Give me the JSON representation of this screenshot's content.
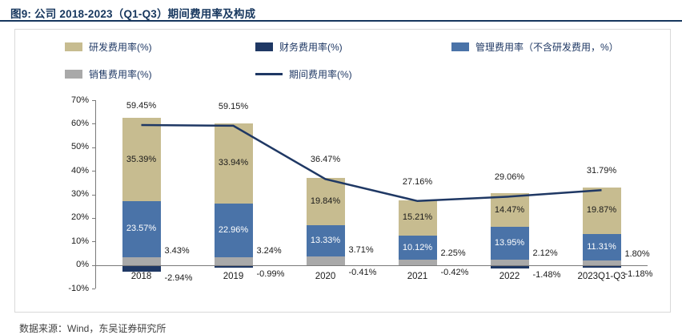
{
  "title": "图9:  公司 2018-2023（Q1-Q3）期间费用率及构成",
  "source_note": "数据来源：Wind，东吴证券研究所",
  "colors": {
    "rd": "#C7BC90",
    "management": "#4A73A8",
    "finance": "#1F3864",
    "sales": "#A9A9A9",
    "line": "#1F3864",
    "title": "#17375E",
    "axis": "#7a7a7a",
    "box_border": "#D9D9D9"
  },
  "legend": [
    {
      "key": "rd",
      "label": "研发费用率(%)",
      "type": "box",
      "row": 0,
      "col": 0
    },
    {
      "key": "finance",
      "label": "财务费用率(%)",
      "type": "box",
      "row": 0,
      "col": 1
    },
    {
      "key": "management",
      "label": "管理费用率（不含研发费用，%）",
      "type": "box",
      "row": 0,
      "col": 2
    },
    {
      "key": "sales",
      "label": "销售费用率(%)",
      "type": "box",
      "row": 1,
      "col": 0
    },
    {
      "key": "line",
      "label": "期间费用率(%)",
      "type": "line",
      "row": 1,
      "col": 1
    }
  ],
  "chart_data": {
    "type": "bar",
    "subtype": "stacked-bar-with-line",
    "title": "公司 2018-2023（Q1-Q3）期间费用率及构成",
    "categories": [
      "2018",
      "2019",
      "2020",
      "2021",
      "2022",
      "2023Q1-Q3"
    ],
    "series": [
      {
        "key": "sales",
        "name": "销售费用率(%)",
        "values": [
          3.43,
          3.24,
          3.71,
          2.25,
          2.12,
          1.8
        ],
        "label_position": "outside-right"
      },
      {
        "key": "management",
        "name": "管理费用率（不含研发费用，%）",
        "values": [
          23.57,
          22.96,
          13.33,
          10.12,
          13.95,
          11.31
        ],
        "label_position": "inside",
        "label_color": "#FFFFFF"
      },
      {
        "key": "rd",
        "name": "研发费用率(%)",
        "values": [
          35.39,
          33.94,
          19.84,
          15.21,
          14.47,
          19.87
        ],
        "label_position": "inside",
        "label_color": "#1A1A1A"
      },
      {
        "key": "finance",
        "name": "财务费用率(%)",
        "values": [
          -2.94,
          -0.99,
          -0.41,
          -0.42,
          -1.48,
          -1.18
        ],
        "label_position": "outside-right-below"
      }
    ],
    "line_series": {
      "key": "line",
      "name": "期间费用率(%)",
      "values": [
        59.45,
        59.15,
        36.47,
        27.16,
        29.06,
        31.79
      ]
    },
    "ylim": [
      -10,
      70
    ],
    "yticks": [
      70,
      60,
      50,
      40,
      30,
      20,
      10,
      0,
      -10
    ],
    "y_tick_format": "percent",
    "legend_position": "top",
    "grid": false
  }
}
